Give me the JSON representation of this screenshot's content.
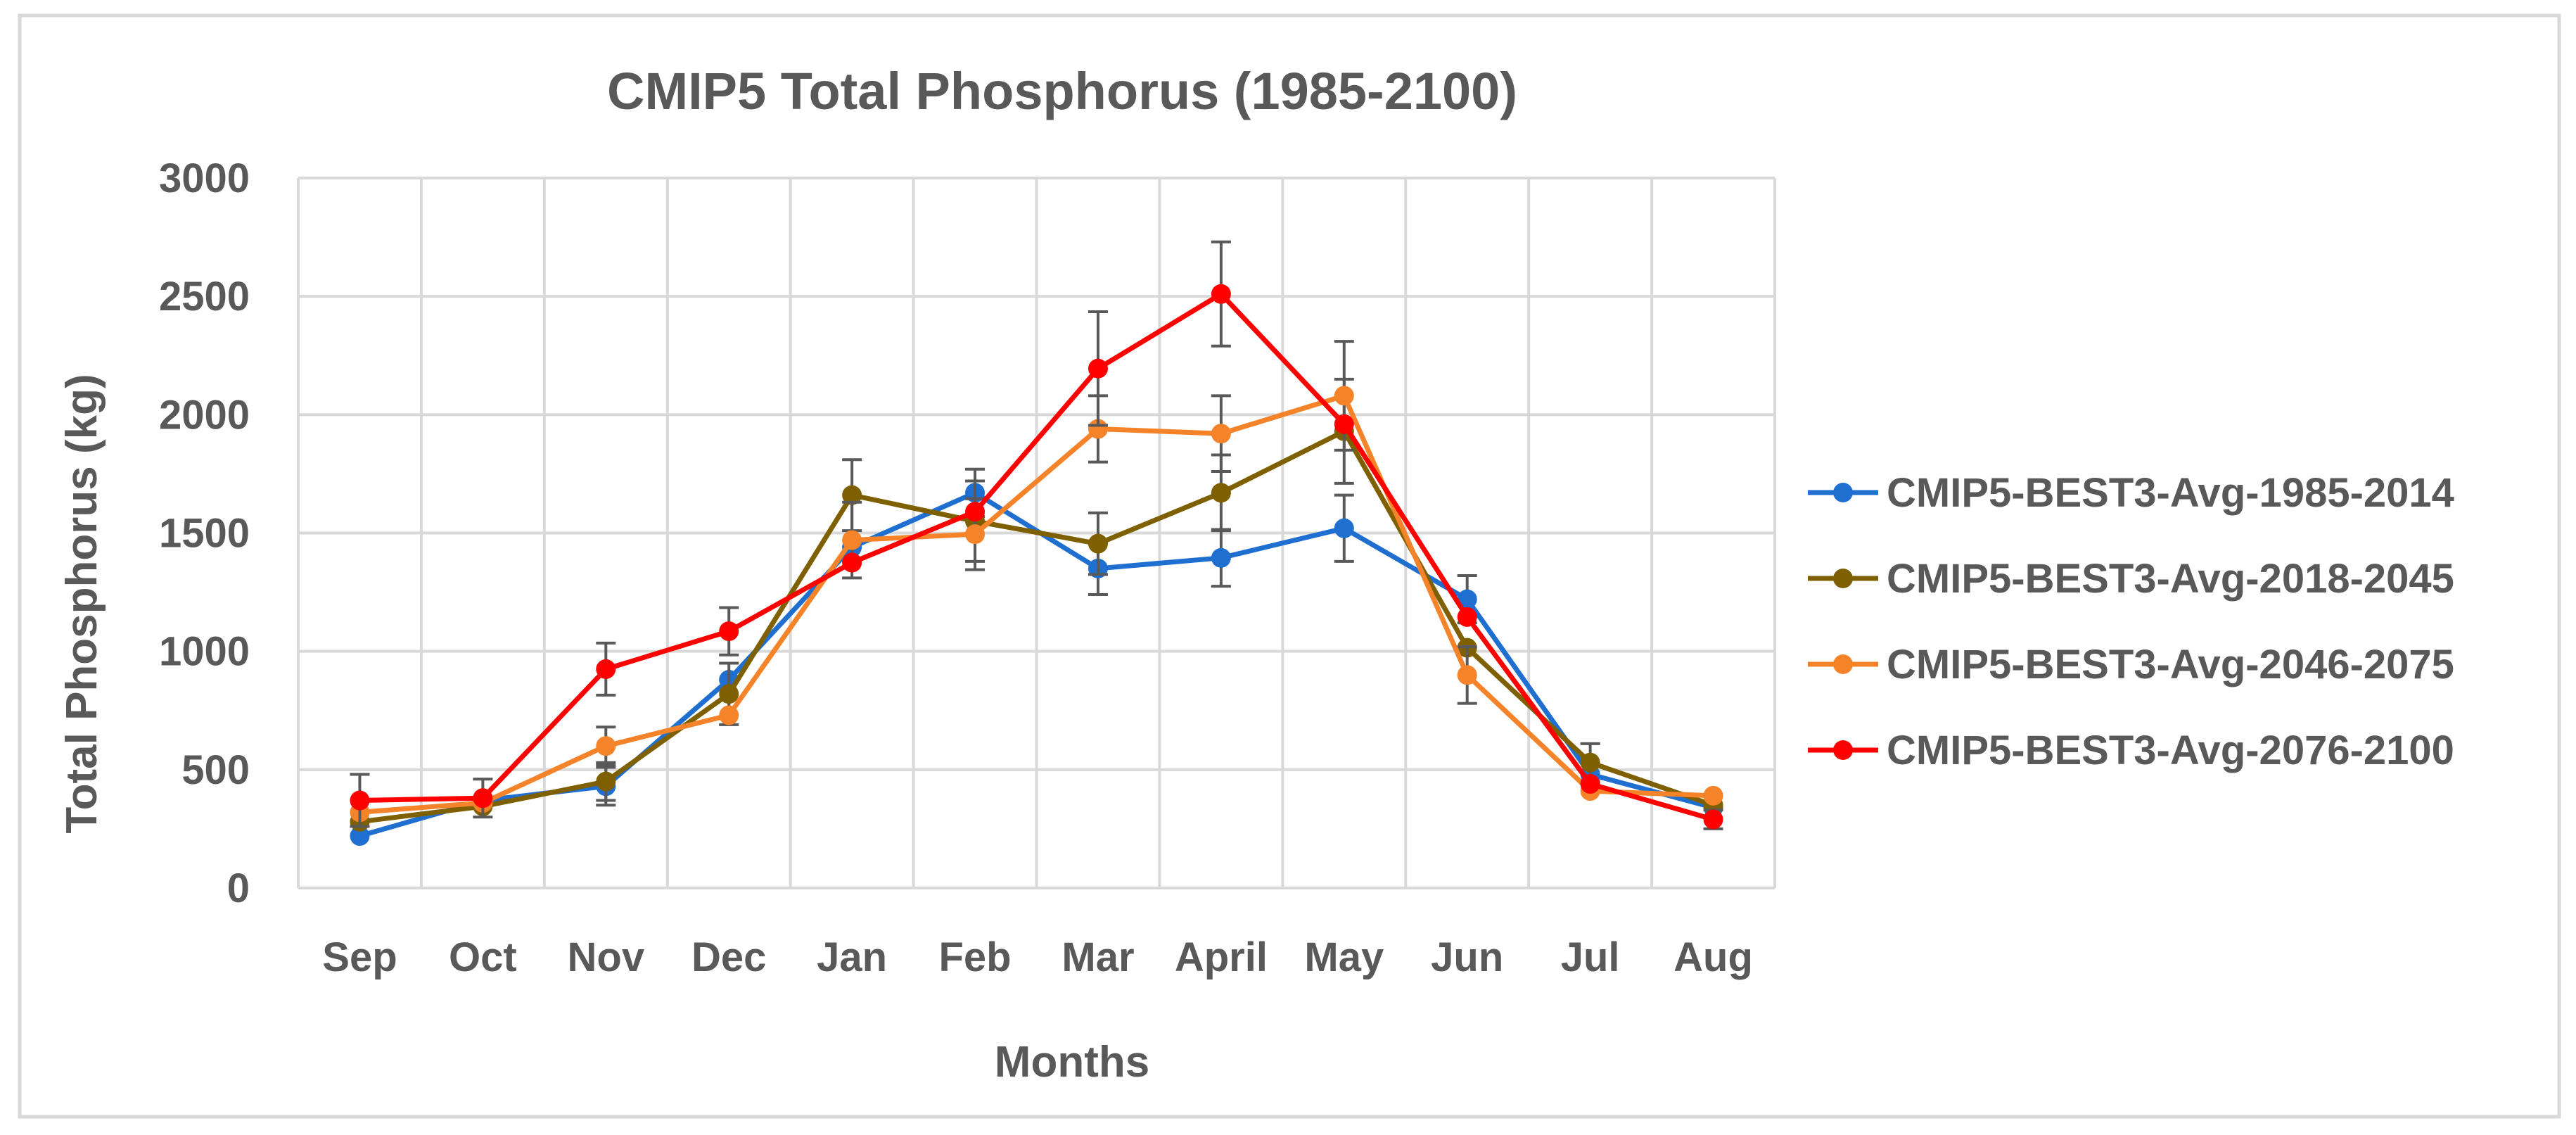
{
  "chart_data": {
    "type": "line",
    "title": "CMIP5 Total Phosphorus (1985-2100)",
    "xlabel": "Months",
    "ylabel": "Total Phosphorus (kg)",
    "ylim": [
      0,
      3000
    ],
    "yticks": [
      0,
      500,
      1000,
      1500,
      2000,
      2500,
      3000
    ],
    "grid": true,
    "legend_position": "right",
    "categories": [
      "Sep",
      "Oct",
      "Nov",
      "Dec",
      "Jan",
      "Feb",
      "Mar",
      "April",
      "May",
      "Jun",
      "Jul",
      "Aug"
    ],
    "series": [
      {
        "name": "CMIP5-BEST3-Avg-1985-2014",
        "color": "#1f6fd1",
        "values": [
          220,
          370,
          430,
          880,
          1440,
          1670,
          1350,
          1395,
          1520,
          1220,
          480,
          340
        ],
        "errors": [
          0,
          0,
          80,
          0,
          0,
          100,
          110,
          120,
          140,
          100,
          0,
          0
        ]
      },
      {
        "name": "CMIP5-BEST3-Avg-2018-2045",
        "color": "#7f6000",
        "values": [
          280,
          345,
          450,
          820,
          1660,
          1550,
          1455,
          1670,
          1930,
          1015,
          530,
          350
        ],
        "errors": [
          0,
          0,
          80,
          130,
          150,
          170,
          130,
          160,
          220,
          0,
          80,
          0
        ]
      },
      {
        "name": "CMIP5-BEST3-Avg-2046-2075",
        "color": "#f5832a",
        "values": [
          320,
          360,
          600,
          730,
          1470,
          1495,
          1940,
          1920,
          2080,
          900,
          410,
          390
        ],
        "errors": [
          0,
          0,
          80,
          0,
          160,
          150,
          140,
          160,
          230,
          120,
          0,
          0
        ]
      },
      {
        "name": "CMIP5-BEST3-Avg-2076-2100",
        "color": "#ff0000",
        "values": [
          370,
          380,
          925,
          1085,
          1375,
          1590,
          2195,
          2510,
          1960,
          1145,
          440,
          290
        ],
        "errors": [
          110,
          80,
          110,
          100,
          0,
          0,
          240,
          220,
          0,
          0,
          0,
          40
        ]
      }
    ]
  }
}
